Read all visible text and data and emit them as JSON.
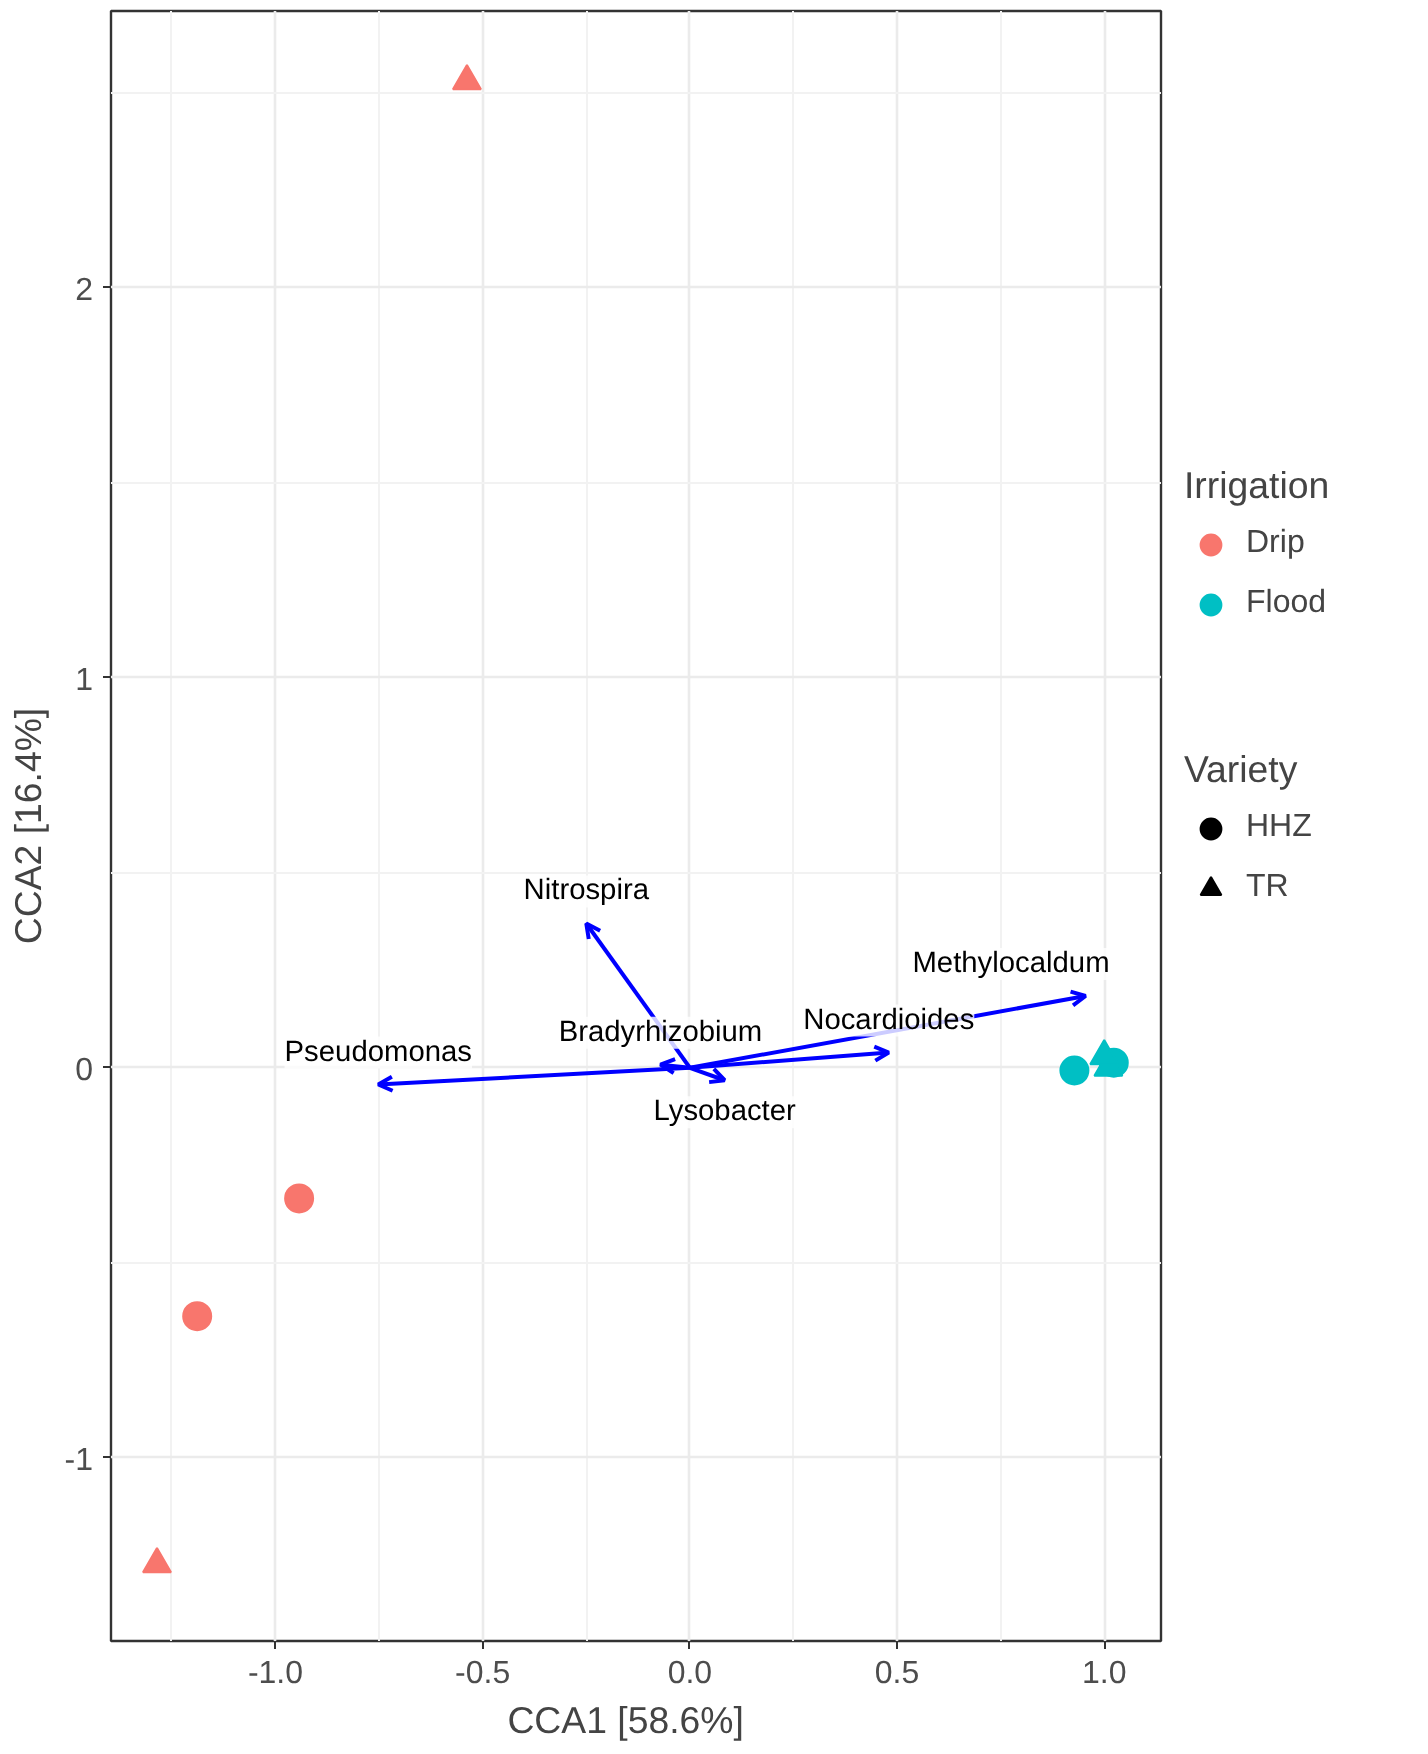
{
  "chart_data": {
    "type": "scatter",
    "xlabel": "CCA1   [58.6%]",
    "ylabel": "CCA2 [16.4%]",
    "legend_title": [
      "Irrigation",
      "Variety"
    ],
    "xlim": [
      -1.397,
      1.137
    ],
    "ylim": [
      -1.47,
      2.71
    ],
    "xticks": [
      {
        "value": -1,
        "label": "-1.0"
      },
      {
        "value": -0.5,
        "label": "-0.5"
      },
      {
        "value": 0,
        "label": "0.0"
      },
      {
        "value": 0.5,
        "label": "0.5"
      },
      {
        "value": 1,
        "label": "1.0"
      }
    ],
    "yticks": [
      -1,
      0,
      1,
      2
    ],
    "grid": true,
    "legend": "right",
    "series": [
      {
        "name": "Drip",
        "color": "#f8766d",
        "marker": "circle",
        "x": [
          -0.943,
          -1.189
        ],
        "values": [
          -0.335,
          -0.637
        ]
      },
      {
        "color": "#f8766d",
        "marker": "triangle",
        "x": [
          -0.538,
          -1.286
        ],
        "values": [
          2.53,
          -1.273
        ]
      },
      {
        "name": "Flood",
        "color": "#00bfc4",
        "marker": "circle",
        "x": [
          0.928,
          1.023
        ],
        "values": [
          -0.007,
          0.013
        ]
      },
      {
        "color": "#00bfc4",
        "marker": "triangle",
        "x": [
          1.01,
          1.0
        ],
        "values": [
          0.0,
          0.03
        ]
      },
      {
        "name": "HHZ",
        "color": "#000000",
        "marker": "circle"
      },
      {
        "name": "TR",
        "color": "#000000",
        "marker": "triangle"
      },
      {
        "type": "line",
        "name": "Nitrospira",
        "color": "#0000ff",
        "x": [
          0,
          -0.25
        ],
        "values": [
          0,
          0.37
        ]
      },
      {
        "type": "line",
        "name": "Pseudomonas",
        "color": "#0000ff",
        "x": [
          0,
          -0.752
        ],
        "values": [
          0,
          -0.043
        ]
      },
      {
        "type": "line",
        "name": "Bradyrhizobium",
        "color": "#0000ff",
        "x": [
          0,
          -0.071
        ],
        "values": [
          0,
          0.008
        ]
      },
      {
        "type": "line",
        "name": "Lysobacter",
        "color": "#0000ff",
        "x": [
          0,
          0.084
        ],
        "values": [
          0,
          -0.032
        ]
      },
      {
        "type": "line",
        "name": "Nocardioides",
        "color": "#0000ff",
        "x": [
          0,
          0.48
        ],
        "values": [
          0,
          0.039
        ]
      },
      {
        "type": "line",
        "name": "Methylocaldum",
        "color": "#0000ff",
        "x": [
          0,
          0.955
        ],
        "values": [
          0,
          0.184
        ]
      }
    ]
  }
}
